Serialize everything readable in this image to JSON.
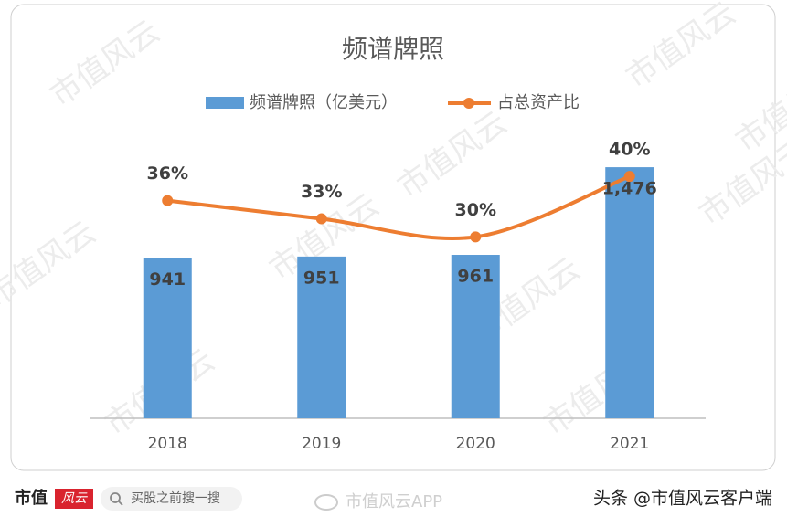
{
  "chart_data": {
    "type": "bar-line",
    "title": "频谱牌照",
    "categories": [
      "2018",
      "2019",
      "2020",
      "2021"
    ],
    "series": [
      {
        "name": "频谱牌照（亿美元）",
        "type": "bar",
        "color": "#5b9bd5",
        "values": [
          941,
          951,
          961,
          1476
        ],
        "value_labels": [
          "941",
          "951",
          "961",
          "1,476"
        ]
      },
      {
        "name": "占总资产比",
        "type": "line",
        "axis": "y2",
        "color": "#ed7d31",
        "values": [
          36,
          33,
          30,
          40
        ],
        "value_labels": [
          "36%",
          "33%",
          "30%",
          "40%"
        ]
      }
    ],
    "ylim": [
      0,
      1600
    ],
    "y2lim": [
      0,
      45
    ],
    "legend": "top"
  },
  "watermark": "市值风云",
  "footer": {
    "logo_left": "市值",
    "logo_right": "风云",
    "search": "买股之前搜一搜",
    "app": "市值风云APP",
    "source": "头条 @市值风云客户端"
  }
}
